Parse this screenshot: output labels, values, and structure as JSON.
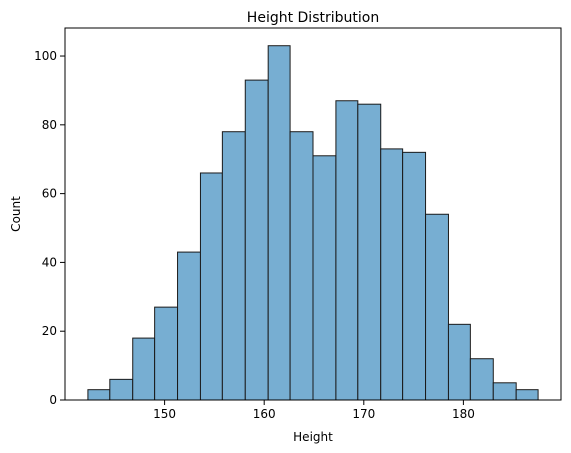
{
  "chart_data": {
    "type": "bar",
    "title": "Height Distribution",
    "xlabel": "Height",
    "ylabel": "Count",
    "bins": [
      {
        "x0": 142.3,
        "x1": 144.5,
        "count": 3
      },
      {
        "x0": 144.5,
        "x1": 146.8,
        "count": 6
      },
      {
        "x0": 146.8,
        "x1": 149.0,
        "count": 18
      },
      {
        "x0": 149.0,
        "x1": 151.3,
        "count": 27
      },
      {
        "x0": 151.3,
        "x1": 153.6,
        "count": 43
      },
      {
        "x0": 153.6,
        "x1": 155.8,
        "count": 66
      },
      {
        "x0": 155.8,
        "x1": 158.1,
        "count": 78
      },
      {
        "x0": 158.1,
        "x1": 160.4,
        "count": 93
      },
      {
        "x0": 160.4,
        "x1": 162.6,
        "count": 103
      },
      {
        "x0": 162.6,
        "x1": 164.9,
        "count": 78
      },
      {
        "x0": 164.9,
        "x1": 167.2,
        "count": 71
      },
      {
        "x0": 167.2,
        "x1": 169.4,
        "count": 87
      },
      {
        "x0": 169.4,
        "x1": 171.7,
        "count": 86
      },
      {
        "x0": 171.7,
        "x1": 173.9,
        "count": 73
      },
      {
        "x0": 173.9,
        "x1": 176.2,
        "count": 72
      },
      {
        "x0": 176.2,
        "x1": 178.5,
        "count": 54
      },
      {
        "x0": 178.5,
        "x1": 180.7,
        "count": 22
      },
      {
        "x0": 180.7,
        "x1": 183.0,
        "count": 12
      },
      {
        "x0": 183.0,
        "x1": 185.3,
        "count": 5
      },
      {
        "x0": 185.3,
        "x1": 187.5,
        "count": 3
      }
    ],
    "xlim": [
      140.0,
      189.8
    ],
    "ylim": [
      0,
      108.15
    ],
    "xticks": [
      150,
      160,
      170,
      180
    ],
    "yticks": [
      0,
      20,
      40,
      60,
      80,
      100
    ],
    "bar_color": "#77aed2",
    "edge_color": "#1a1a1a",
    "grid": false,
    "legend": "none"
  }
}
